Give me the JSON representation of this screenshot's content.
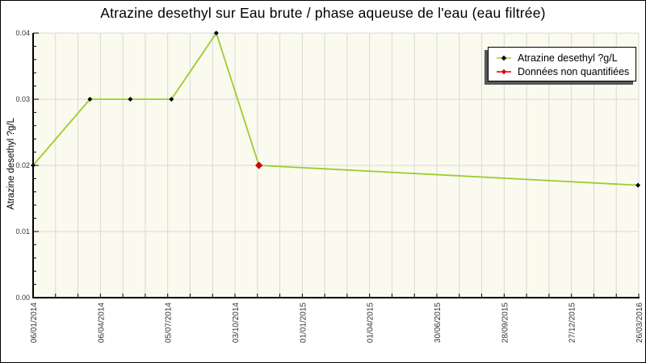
{
  "chart_data": {
    "type": "line",
    "title": "Atrazine desethyl sur Eau brute / phase aqueuse de l'eau (eau filtrée)",
    "ylabel": "Atrazine desethyl ?g/L",
    "xlabel": "",
    "ylim": [
      0,
      0.04
    ],
    "y_tick_labels": [
      "0.00",
      "0.01",
      "0.02",
      "0.03",
      "0.04"
    ],
    "y_major_step": 0.01,
    "y_minor_step": 0.002,
    "x_tick_labels": [
      "06/01/2014",
      "06/04/2014",
      "05/07/2014",
      "03/10/2014",
      "01/01/2015",
      "01/04/2015",
      "30/06/2015",
      "28/09/2015",
      "27/12/2015",
      "26/03/2016"
    ],
    "x_range_days": [
      0,
      810
    ],
    "x_label_interval_days": 90,
    "x_minor_interval_days": 30,
    "grid": {
      "horizontal": "major",
      "vertical": "minor",
      "visible": true
    },
    "legend_position": "top-right",
    "legend": [
      {
        "label": "Atrazine desethyl ?g/L",
        "line_color": "#9acd32",
        "marker_color": "#000000",
        "marker": "diamond"
      },
      {
        "label": "Données non quantifiées",
        "line_color": "#dd0000",
        "marker_color": "#dd0000",
        "marker": "diamond"
      }
    ],
    "series": [
      {
        "name": "Atrazine desethyl ?g/L",
        "points": [
          {
            "x_days": 0,
            "value": 0.02
          },
          {
            "x_days": 76,
            "value": 0.03
          },
          {
            "x_days": 130,
            "value": 0.03
          },
          {
            "x_days": 185,
            "value": 0.03
          },
          {
            "x_days": 245,
            "value": 0.04
          },
          {
            "x_days": 302,
            "value": 0.02,
            "non_quantified": true
          },
          {
            "x_days": 809,
            "value": 0.017
          }
        ]
      }
    ],
    "colors": {
      "line": "#9acd32",
      "marker": "#000000",
      "non_quantified": "#dd0000",
      "plot_background": "#fafaee",
      "grid": "#d9d9d9",
      "axis": "#000000",
      "tick_text": "#333333",
      "legend_shadow": "#575757",
      "background": "#ffffff",
      "border": "#000000"
    }
  }
}
